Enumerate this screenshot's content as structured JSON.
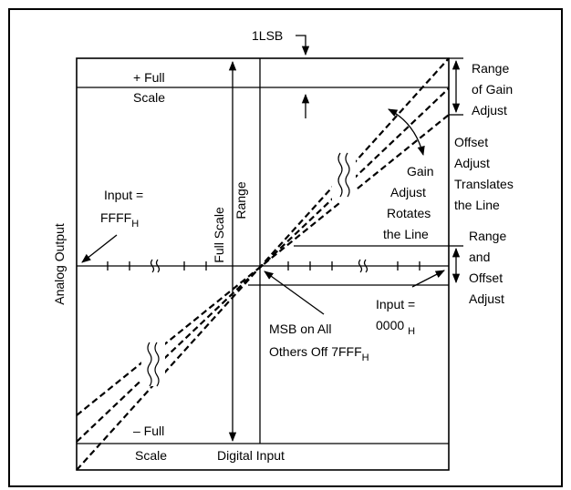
{
  "labels": {
    "lsb": "1LSB",
    "plus_full": "+ Full",
    "plus_scale": "Scale",
    "minus_full": "– Full",
    "minus_scale": "Scale",
    "range_gain_1": "Range",
    "range_gain_2": "of Gain",
    "range_gain_3": "Adjust",
    "offset_adj_1": "Offset",
    "offset_adj_2": "Adjust",
    "offset_adj_3": "Translates",
    "offset_adj_4": "the Line",
    "gain_adj_1": "Gain",
    "gain_adj_2": "Adjust",
    "gain_adj_3": "Rotates",
    "gain_adj_4": "the Line",
    "range_off_1": "Range",
    "range_off_2": "and",
    "range_off_3": "Offset",
    "range_off_4": "Adjust",
    "input_ffff_1": "Input =",
    "input_ffff_2": "FFFF",
    "input_ffff_sub": "H",
    "input_0000_1": "Input =",
    "input_0000_2": "0000",
    "input_0000_sub": "H",
    "msb_1": "MSB on All",
    "msb_2": "Others Off 7FFF",
    "msb_sub": "H",
    "full_scale_1": "Full Scale",
    "full_scale_2": "Range",
    "analog_output": "Analog Output",
    "digital_input": "Digital Input"
  }
}
